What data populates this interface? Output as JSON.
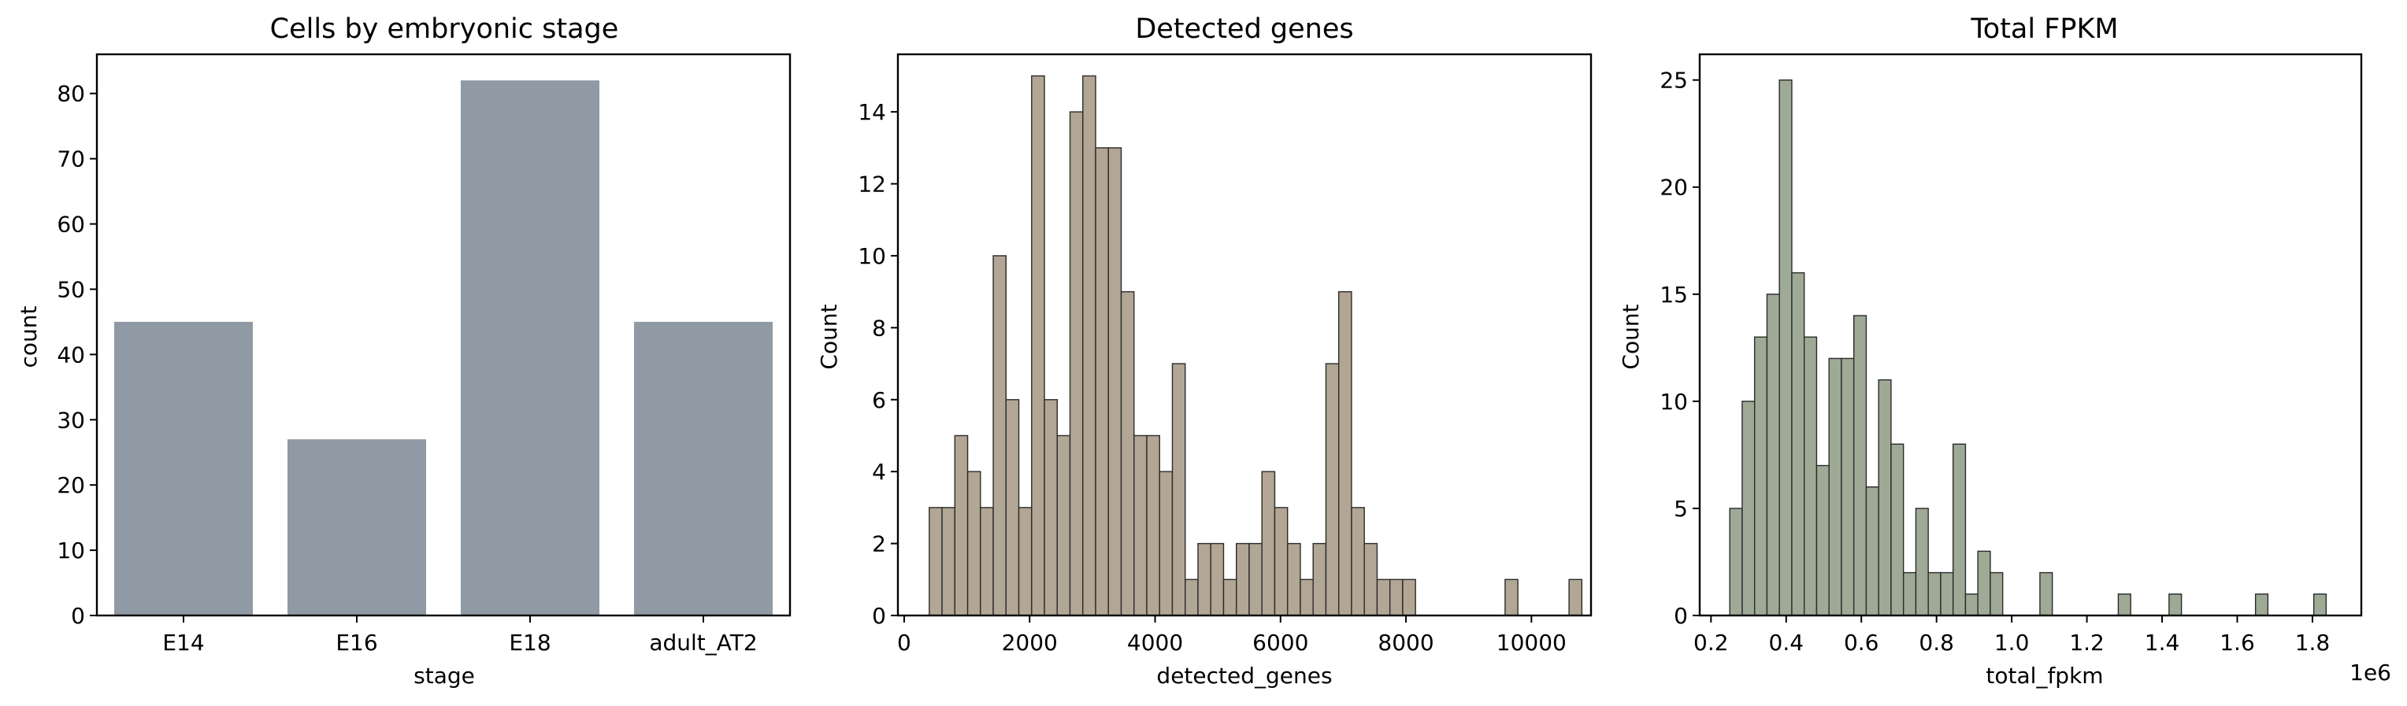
{
  "chart_data": [
    {
      "type": "bar",
      "title": "Cells by embryonic stage",
      "xlabel": "stage",
      "ylabel": "count",
      "categories": [
        "E14",
        "E16",
        "E18",
        "adult_AT2"
      ],
      "values": [
        45,
        27,
        82,
        45
      ],
      "ylim": [
        0,
        86
      ],
      "yticks": [
        0,
        10,
        20,
        30,
        40,
        50,
        60,
        70,
        80
      ],
      "ytick_labels": [
        "0",
        "10",
        "20",
        "30",
        "40",
        "50",
        "60",
        "70",
        "80"
      ],
      "color": "#8f9aa4",
      "grid": false
    },
    {
      "type": "bar",
      "subtype": "histogram",
      "title": "Detected genes",
      "xlabel": "detected_genes",
      "ylabel": "Count",
      "bin_start": 400,
      "bin_width": 204,
      "counts": [
        3,
        3,
        5,
        4,
        3,
        10,
        6,
        3,
        15,
        6,
        5,
        14,
        15,
        13,
        13,
        9,
        5,
        5,
        4,
        7,
        1,
        2,
        2,
        1,
        2,
        2,
        4,
        3,
        2,
        1,
        2,
        7,
        9,
        3,
        2,
        1,
        1,
        1,
        0,
        0,
        0,
        0,
        0,
        0,
        0,
        1,
        0,
        0,
        0,
        0,
        1
      ],
      "xlim": [
        -100,
        10950
      ],
      "ylim": [
        0,
        15.6
      ],
      "xticks": [
        0,
        2000,
        4000,
        6000,
        8000,
        10000
      ],
      "xtick_labels": [
        "0",
        "2000",
        "4000",
        "6000",
        "8000",
        "10000"
      ],
      "yticks": [
        0,
        2,
        4,
        6,
        8,
        10,
        12,
        14
      ],
      "ytick_labels": [
        "0",
        "2",
        "4",
        "6",
        "8",
        "10",
        "12",
        "14"
      ],
      "color": "#b2a694",
      "grid": false
    },
    {
      "type": "bar",
      "subtype": "histogram",
      "title": "Total FPKM",
      "xlabel": "total_fpkm",
      "ylabel": "Count",
      "offset_text": "1e6",
      "bin_start": 0.25,
      "bin_width": 0.033,
      "counts": [
        5,
        10,
        13,
        15,
        25,
        16,
        13,
        7,
        12,
        12,
        14,
        6,
        11,
        8,
        2,
        5,
        2,
        2,
        8,
        1,
        3,
        2,
        0,
        0,
        0,
        2,
        0,
        0,
        0,
        0,
        0,
        0,
        0,
        0,
        0,
        0,
        0,
        0,
        0,
        0,
        0,
        0,
        0,
        0,
        0,
        0,
        0,
        0,
        0,
        0,
        0,
        0,
        0,
        0,
        0,
        0,
        0
      ],
      "extra_bins": [
        {
          "x": 1.3,
          "count": 1
        },
        {
          "x": 1.435,
          "count": 1
        },
        {
          "x": 1.665,
          "count": 1
        },
        {
          "x": 1.82,
          "count": 1
        }
      ],
      "xlim": [
        0.17,
        1.93
      ],
      "ylim": [
        0,
        26.2
      ],
      "xticks": [
        0.2,
        0.4,
        0.6,
        0.8,
        1.0,
        1.2,
        1.4,
        1.6,
        1.8
      ],
      "xtick_labels": [
        "0.2",
        "0.4",
        "0.6",
        "0.8",
        "1.0",
        "1.2",
        "1.4",
        "1.6",
        "1.8"
      ],
      "yticks": [
        0,
        5,
        10,
        15,
        20,
        25
      ],
      "ytick_labels": [
        "0",
        "5",
        "10",
        "15",
        "20",
        "25"
      ],
      "color": "#9ea996",
      "grid": false
    }
  ]
}
